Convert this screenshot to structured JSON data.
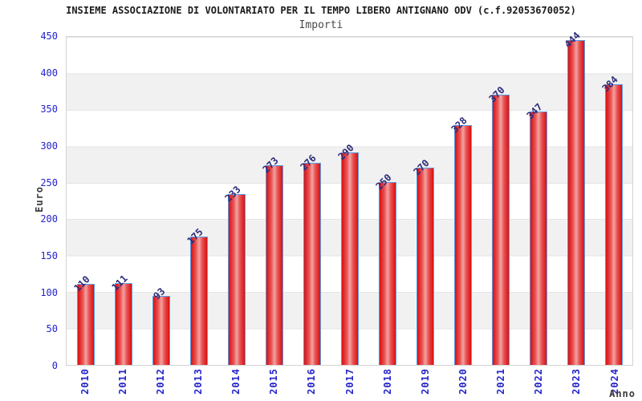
{
  "header": {
    "title": "INSIEME ASSOCIAZIONE DI VOLONTARIATO PER IL TEMPO LIBERO ANTIGNANO ODV (c.f.92053670052)",
    "subtitle": "Importi"
  },
  "chart_data": {
    "type": "bar",
    "title": "INSIEME ASSOCIAZIONE DI VOLONTARIATO PER IL TEMPO LIBERO ANTIGNANO ODV (c.f.92053670052)",
    "subtitle": "Importi",
    "categories": [
      "2010",
      "2011",
      "2012",
      "2013",
      "2014",
      "2015",
      "2016",
      "2017",
      "2018",
      "2019",
      "2020",
      "2021",
      "2022",
      "2023",
      "2024"
    ],
    "values": [
      110,
      111,
      93,
      175,
      233,
      273,
      276,
      290,
      250,
      270,
      328,
      370,
      347,
      444,
      384
    ],
    "xlabel": "Anno",
    "ylabel": "Euro",
    "ylim": [
      0,
      450
    ],
    "y_ticks": [
      0,
      50,
      100,
      150,
      200,
      250,
      300,
      350,
      400,
      450
    ],
    "grid": "horizontal-alternating-bands",
    "legend": "none",
    "colors": {
      "axis_label_blue": "#2424cc",
      "value_label_navy": "#2c2c7a",
      "bar_edge_red": "#da1010",
      "bar_center_pink": "#f4a2a2",
      "bar_border_blue": "#5b9ce6",
      "band_gray": "#f1f1f1",
      "grid_line": "#e4e4e4",
      "plot_border": "#d3d3d3"
    }
  }
}
